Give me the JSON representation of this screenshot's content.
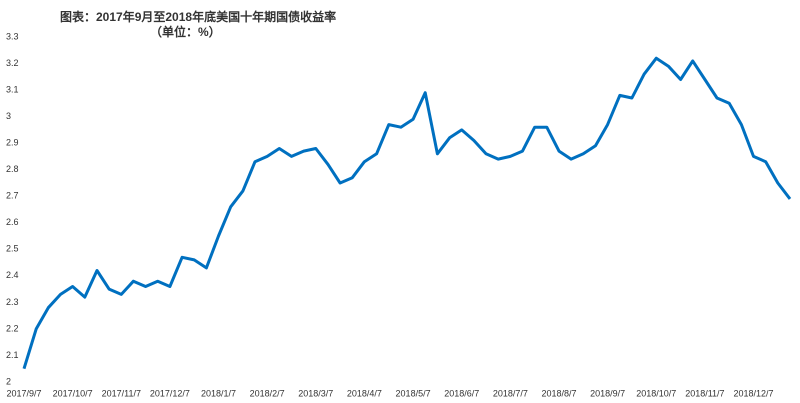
{
  "chart_data": {
    "type": "line",
    "title": "图表：2017年9月至2018年底美国十年期国债收益率",
    "subtitle": "（单位：%）",
    "categories": [
      "2017/9/7",
      null,
      null,
      null,
      "2017/10/7",
      null,
      null,
      null,
      "2017/11/7",
      null,
      null,
      null,
      "2017/12/7",
      null,
      null,
      null,
      "2018/1/7",
      null,
      null,
      null,
      "2018/2/7",
      null,
      null,
      null,
      "2018/3/7",
      null,
      null,
      null,
      "2018/4/7",
      null,
      null,
      null,
      "2018/5/7",
      null,
      null,
      null,
      "2018/6/7",
      null,
      null,
      null,
      "2018/7/7",
      null,
      null,
      null,
      "2018/8/7",
      null,
      null,
      null,
      "2018/9/7",
      null,
      null,
      null,
      "2018/10/7",
      null,
      null,
      null,
      "2018/11/7",
      null,
      null,
      null,
      "2018/12/7",
      null,
      null,
      null
    ],
    "series": [
      {
        "name": "收益率",
        "color": "#0070c0",
        "values": [
          2.05,
          2.2,
          2.28,
          2.33,
          2.36,
          2.32,
          2.42,
          2.35,
          2.33,
          2.38,
          2.36,
          2.38,
          2.36,
          2.47,
          2.46,
          2.43,
          2.55,
          2.66,
          2.72,
          2.83,
          2.85,
          2.88,
          2.85,
          2.87,
          2.88,
          2.82,
          2.75,
          2.77,
          2.83,
          2.86,
          2.97,
          2.96,
          2.99,
          3.09,
          2.86,
          2.92,
          2.95,
          2.91,
          2.86,
          2.84,
          2.85,
          2.87,
          2.96,
          2.96,
          2.87,
          2.84,
          2.86,
          2.89,
          2.97,
          3.08,
          3.07,
          3.16,
          3.22,
          3.19,
          3.14,
          3.21,
          3.14,
          3.07,
          3.05,
          2.97,
          2.85,
          2.83,
          2.75,
          2.69
        ]
      }
    ],
    "ylim": [
      2,
      3.3
    ],
    "yticks": [
      2,
      2.1,
      2.2,
      2.3,
      2.4,
      2.5,
      2.6,
      2.7,
      2.8,
      2.9,
      3,
      3.1,
      3.2,
      3.3
    ]
  }
}
